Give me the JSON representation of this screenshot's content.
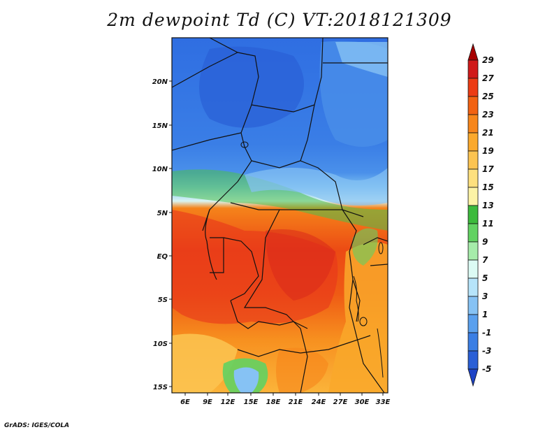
{
  "title": "2m dewpoint Td (C) VT:2018121309",
  "credit": "GrADS: IGES/COLA",
  "map": {
    "lat_ticks": [
      "20N",
      "15N",
      "10N",
      "5N",
      "EQ",
      "5S",
      "10S",
      "15S"
    ],
    "lon_ticks": [
      "6E",
      "9E",
      "12E",
      "15E",
      "18E",
      "21E",
      "24E",
      "27E",
      "30E",
      "33E"
    ]
  },
  "colorbar": {
    "labels": [
      "29",
      "27",
      "25",
      "23",
      "21",
      "19",
      "17",
      "15",
      "13",
      "11",
      "9",
      "7",
      "5",
      "3",
      "1",
      "-1",
      "-3",
      "-5"
    ],
    "colors": [
      "#a80000",
      "#d01a1a",
      "#ec3b14",
      "#f26212",
      "#f7861b",
      "#fba92c",
      "#fcc451",
      "#fde07e",
      "#fcf3a6",
      "#3cba3c",
      "#62d262",
      "#a6ecaa",
      "#dcfbf4",
      "#b6e4fa",
      "#86c2f4",
      "#5aa0ee",
      "#3a7ee4",
      "#2a5fd6",
      "#1e44c6"
    ]
  }
}
